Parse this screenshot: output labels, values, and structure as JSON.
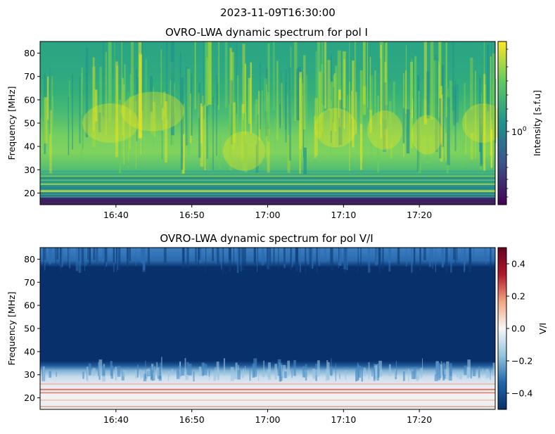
{
  "figure": {
    "suptitle": "2023-11-09T16:30:00"
  },
  "chart_data": [
    {
      "type": "heatmap",
      "title": "OVRO-LWA dynamic spectrum for pol I",
      "xlabel": "",
      "ylabel": "Frequency [MHz]",
      "x_range": [
        "16:30",
        "17:30"
      ],
      "xticks": [
        "16:40",
        "16:50",
        "17:00",
        "17:10",
        "17:20"
      ],
      "ylim": [
        15,
        85
      ],
      "yticks": [
        20,
        30,
        40,
        50,
        60,
        70,
        80
      ],
      "colormap": "viridis",
      "colorbar": {
        "label": "Intensity [s.f.u]",
        "scale": "log",
        "ticks": [
          "10^0"
        ],
        "tick_value": 1
      },
      "cmap_colors": [
        "#440154",
        "#3b528b",
        "#21918c",
        "#5ec962",
        "#fde725"
      ]
    },
    {
      "type": "heatmap",
      "title": "OVRO-LWA dynamic spectrum for pol V/I",
      "xlabel": "",
      "ylabel": "Frequency [MHz]",
      "x_range": [
        "16:30",
        "17:30"
      ],
      "xticks": [
        "16:40",
        "16:50",
        "17:00",
        "17:10",
        "17:20"
      ],
      "ylim": [
        15,
        85
      ],
      "yticks": [
        20,
        30,
        40,
        50,
        60,
        70,
        80
      ],
      "colormap": "RdBu_r",
      "colorbar": {
        "label": "V/I",
        "scale": "linear",
        "range": [
          -0.5,
          0.5
        ],
        "ticks": [
          "0.4",
          "0.2",
          "0.0",
          "−0.2",
          "−0.4"
        ],
        "tick_values": [
          0.4,
          0.2,
          0.0,
          -0.2,
          -0.4
        ]
      },
      "cmap_colors": [
        "#08306b",
        "#2166ac",
        "#92c5de",
        "#f7f7f7",
        "#f4a582",
        "#b2182b",
        "#67001f"
      ]
    }
  ]
}
